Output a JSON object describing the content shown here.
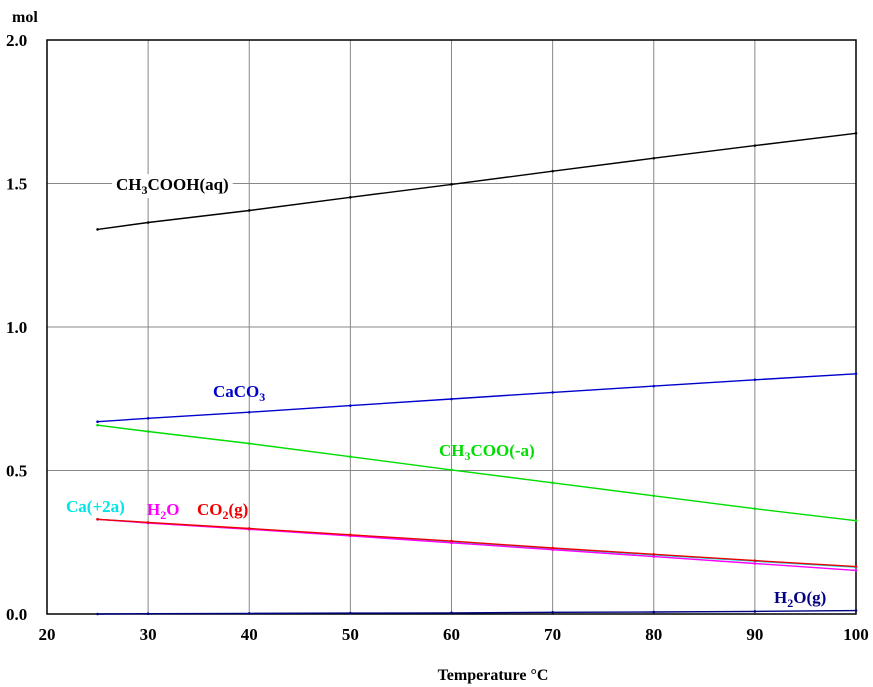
{
  "chart_data": {
    "type": "line",
    "title": "",
    "xlabel": "Temperature °C",
    "ylabel": "mol",
    "xlim": [
      20,
      100
    ],
    "ylim": [
      0,
      2
    ],
    "x_ticks": [
      "20",
      "30",
      "40",
      "50",
      "60",
      "70",
      "80",
      "90",
      "100"
    ],
    "y_ticks": [
      "0.0",
      "0.5",
      "1.0",
      "1.5",
      "2.0"
    ],
    "grid": true,
    "legend": "inline labels",
    "series": [
      {
        "name": "CH3COOH(aq)",
        "label_main": "CH",
        "label_sub": "3",
        "label_rest": "COOH(aq)",
        "color": "#000000",
        "x": [
          25,
          30,
          40,
          50,
          60,
          70,
          80,
          90,
          100
        ],
        "y": [
          1.34,
          1.364,
          1.406,
          1.452,
          1.497,
          1.543,
          1.588,
          1.632,
          1.675
        ]
      },
      {
        "name": "CaCO3",
        "label_main": "CaCO",
        "label_sub": "3",
        "label_rest": "",
        "color": "#0000cc",
        "x": [
          25,
          30,
          40,
          50,
          60,
          70,
          80,
          90,
          100
        ],
        "y": [
          0.67,
          0.682,
          0.703,
          0.726,
          0.749,
          0.772,
          0.794,
          0.816,
          0.837
        ]
      },
      {
        "name": "CH3COO(-a)",
        "label_main": "CH",
        "label_sub": "3",
        "label_rest": "COO(-a)",
        "color": "#00dd00",
        "x": [
          25,
          30,
          40,
          50,
          60,
          70,
          80,
          90,
          100
        ],
        "y": [
          0.658,
          0.636,
          0.594,
          0.548,
          0.502,
          0.457,
          0.412,
          0.367,
          0.325
        ]
      },
      {
        "name": "Ca(+2a)",
        "label_main": "Ca(+2a)",
        "label_sub": "",
        "label_rest": "",
        "color": "#00e5e5",
        "x": [
          25,
          30,
          40,
          50,
          60,
          70,
          80,
          90,
          100
        ],
        "y": [
          0.33,
          0.318,
          0.297,
          0.274,
          0.251,
          0.228,
          0.206,
          0.184,
          0.163
        ]
      },
      {
        "name": "H2O",
        "label_main": "H",
        "label_sub": "2",
        "label_rest": "O",
        "color": "#ff00ff",
        "x": [
          25,
          30,
          40,
          50,
          60,
          70,
          80,
          90,
          100
        ],
        "y": [
          0.33,
          0.317,
          0.295,
          0.272,
          0.248,
          0.224,
          0.2,
          0.176,
          0.152
        ]
      },
      {
        "name": "CO2(g)",
        "label_main": "CO",
        "label_sub": "2",
        "label_rest": "(g)",
        "color": "#ee0000",
        "x": [
          25,
          30,
          40,
          50,
          60,
          70,
          80,
          90,
          100
        ],
        "y": [
          0.33,
          0.319,
          0.298,
          0.276,
          0.254,
          0.23,
          0.208,
          0.186,
          0.165
        ]
      },
      {
        "name": "H2O(g)",
        "label_main": "H",
        "label_sub": "2",
        "label_rest": "O(g)",
        "color": "#000080",
        "x": [
          25,
          30,
          40,
          50,
          60,
          70,
          80,
          90,
          100
        ],
        "y": [
          0.0,
          0.001,
          0.002,
          0.003,
          0.004,
          0.006,
          0.007,
          0.009,
          0.012
        ]
      }
    ]
  }
}
